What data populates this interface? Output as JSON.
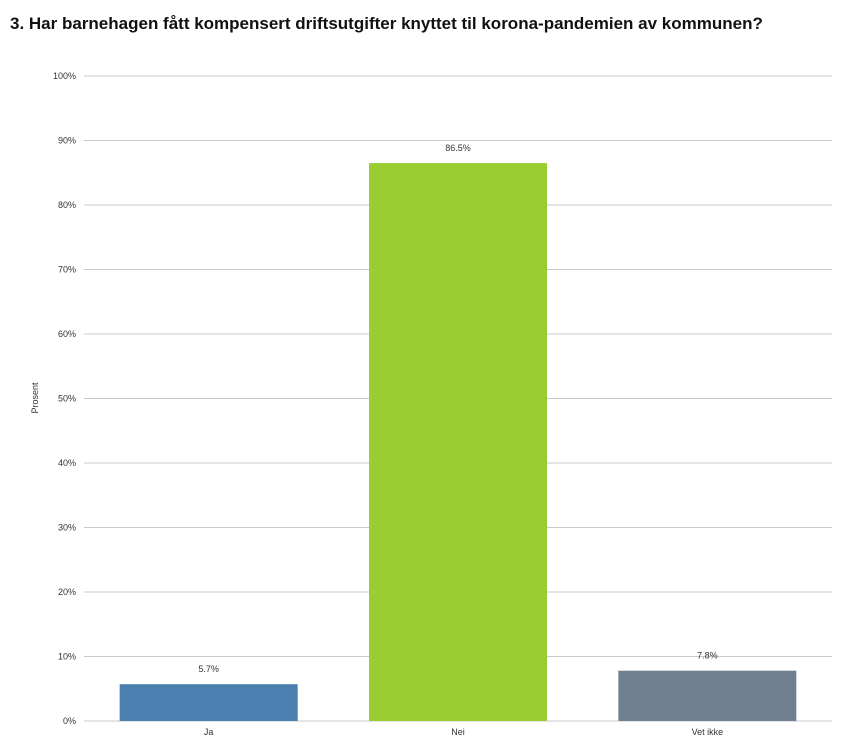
{
  "chart_data": {
    "type": "bar",
    "title": "3. Har barnehagen fått kompensert driftsutgifter knyttet til korona-pandemien av kommunen?",
    "ylabel": "Prosent",
    "xlabel": "",
    "categories": [
      "Ja",
      "Nei",
      "Vet ikke"
    ],
    "values": [
      5.7,
      86.5,
      7.8
    ],
    "data_labels": [
      "5.7%",
      "86.5%",
      "7.8%"
    ],
    "colors": [
      "#4a7fb0",
      "#9acd32",
      "#708090"
    ],
    "ylim": [
      0,
      100
    ],
    "yticks": [
      "0%",
      "10%",
      "20%",
      "30%",
      "40%",
      "50%",
      "60%",
      "70%",
      "80%",
      "90%",
      "100%"
    ],
    "grid": true,
    "legend": "none"
  }
}
